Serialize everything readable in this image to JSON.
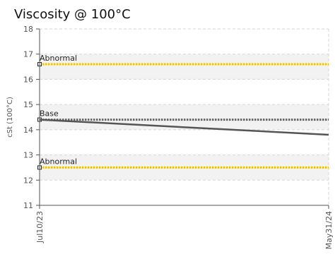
{
  "chart_data": {
    "type": "line",
    "title": "Viscosity @ 100°C",
    "xlabel": "",
    "ylabel": "cSt (100°C)",
    "x": [
      "Jul10/23",
      "May31/24"
    ],
    "ylim": [
      11,
      18
    ],
    "yticks": [
      11,
      12,
      13,
      14,
      15,
      16,
      17,
      18
    ],
    "grid": true,
    "series": [
      {
        "values": [
          14.4,
          13.8
        ],
        "color": "#555555"
      }
    ],
    "reference_lines": [
      {
        "label": "Abnormal",
        "value": 16.6,
        "color": "#f2c200"
      },
      {
        "label": "Base",
        "value": 14.4,
        "color": "#666666"
      },
      {
        "label": "Abnormal",
        "value": 12.5,
        "color": "#f2c200"
      }
    ],
    "shaded_bands": [
      [
        16.0,
        17.0
      ],
      [
        14.0,
        15.0
      ],
      [
        12.0,
        13.0
      ]
    ]
  }
}
